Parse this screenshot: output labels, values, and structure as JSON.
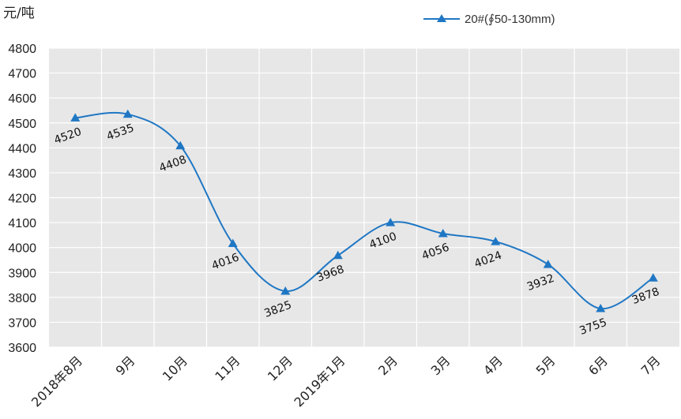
{
  "chart_data": {
    "type": "line",
    "unit": "元/吨",
    "categories": [
      "2018年8月",
      "9月",
      "10月",
      "11月",
      "12月",
      "2019年1月",
      "2月",
      "3月",
      "4月",
      "5月",
      "6月",
      "7月"
    ],
    "series": [
      {
        "name": "20#(∮50-130mm)",
        "color": "#1f77c4",
        "marker": "triangle",
        "values": [
          4520,
          4535,
          4408,
          4016,
          3825,
          3968,
          4100,
          4056,
          4024,
          3932,
          3755,
          3878
        ],
        "data_labels": [
          "4520",
          "4535",
          "4408",
          "4016",
          "3825",
          "3968",
          "4100",
          "4056",
          "4024",
          "3932",
          "3755",
          "3878"
        ]
      }
    ],
    "ylim": [
      3600,
      4800
    ],
    "yticks": [
      3600,
      3700,
      3800,
      3900,
      4000,
      4100,
      4200,
      4300,
      4400,
      4500,
      4600,
      4700,
      4800
    ],
    "grid": true,
    "legend_position": "top-right",
    "plot_background": "#e7e7e7",
    "smooth": true
  }
}
